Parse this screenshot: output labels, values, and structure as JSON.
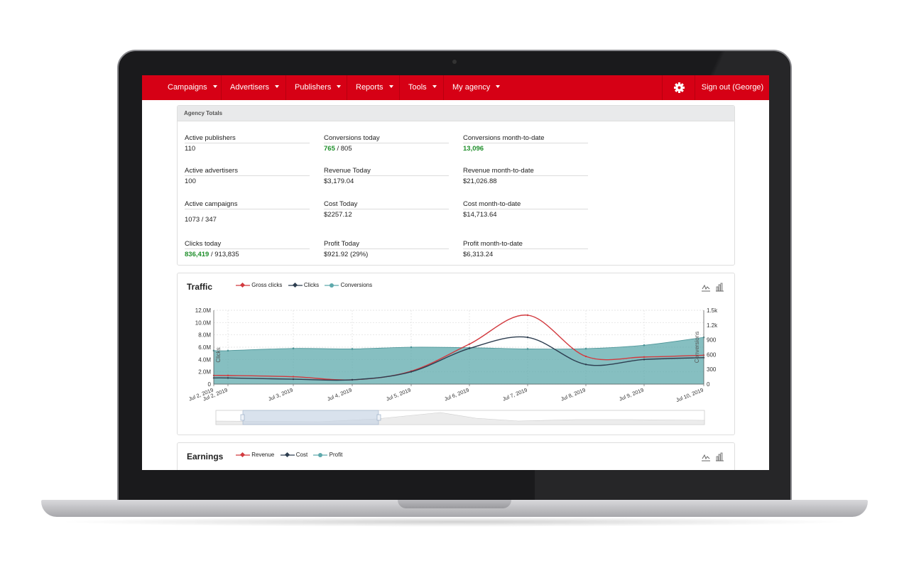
{
  "nav": {
    "items": [
      {
        "label": "Campaigns"
      },
      {
        "label": "Advertisers"
      },
      {
        "label": "Publishers"
      },
      {
        "label": "Reports"
      },
      {
        "label": "Tools"
      },
      {
        "label": "My agency"
      }
    ],
    "settings_icon": "gear-icon",
    "signout_label": "Sign out (George)",
    "accent_color": "#d60015"
  },
  "totals": {
    "title": "Agency Totals",
    "col1": [
      {
        "label": "Active publishers",
        "value": "110"
      },
      {
        "label": "Active advertisers",
        "value": "100"
      },
      {
        "label": "Active campaigns",
        "value": "1073 / 347"
      },
      {
        "label": "Clicks today",
        "value_highlight": "836,419",
        "value_rest": " / 913,835"
      }
    ],
    "col2": [
      {
        "label": "Conversions today",
        "value_highlight": "765",
        "value_rest": " / 805"
      },
      {
        "label": "Revenue Today",
        "value": "$3,179.04"
      },
      {
        "label": "Cost Today",
        "value": "$2257.12"
      },
      {
        "label": "Profit Today",
        "value": "$921.92 (29%)"
      }
    ],
    "col3": [
      {
        "label": "Conversions month-to-date",
        "value_highlight": "13,096"
      },
      {
        "label": "Revenue month-to-date",
        "value": "$21,026.88"
      },
      {
        "label": "Cost month-to-date",
        "value": "$14,713.64"
      },
      {
        "label": "Profit month-to-date",
        "value": "$6,313.24"
      }
    ]
  },
  "traffic": {
    "title": "Traffic",
    "legend": [
      "Gross clicks",
      "Clicks",
      "Conversions"
    ],
    "colors": {
      "gross": "#d23a3f",
      "clicks": "#2d3e50",
      "conversions": "#5ea9ac"
    },
    "left_axis_label": "Clicks",
    "right_axis_label": "Conversions",
    "icons": [
      "line-chart-icon",
      "bar-chart-icon"
    ]
  },
  "earnings": {
    "title": "Earnings",
    "legend": [
      "Revenue",
      "Cost",
      "Profit"
    ],
    "icons": [
      "line-chart-icon",
      "bar-chart-icon"
    ]
  },
  "chart_data": {
    "type": "line",
    "title": "Traffic",
    "xlabel": "",
    "ylabel": "Clicks",
    "y2label": "Conversions",
    "x": [
      "Jul 2, 2019",
      "Jul 2, 2019",
      "Jul 3, 2019",
      "Jul 4, 2019",
      "Jul 5, 2019",
      "Jul 6, 2019",
      "Jul 7, 2019",
      "Jul 8, 2019",
      "Jul 9, 2019",
      "Jul 10, 2019"
    ],
    "x_ticks": [
      "Jul 2, 2019",
      "Jul 2, 2019",
      "Jul 3, 2019",
      "Jul 4, 2019",
      "Jul 5, 2019",
      "Jul 6, 2019",
      "Jul 7, 2019",
      "Jul 8, 2019",
      "Jul 9, 2019",
      "Jul 10, 2019"
    ],
    "y_ticks": [
      "0",
      "2.0M",
      "4.0M",
      "6.0M",
      "8.0M",
      "10.0M",
      "12.0M"
    ],
    "y2_ticks": [
      "0",
      "300",
      "600",
      "900",
      "1.2k",
      "1.5k"
    ],
    "ylim": [
      0,
      12000000
    ],
    "y2lim": [
      0,
      1500
    ],
    "series": [
      {
        "name": "Gross clicks",
        "axis": "left",
        "values": [
          1400000,
          1400000,
          1200000,
          700000,
          2100000,
          6500000,
          11200000,
          4500000,
          4400000,
          4700000
        ]
      },
      {
        "name": "Clicks",
        "axis": "left",
        "values": [
          1000000,
          1000000,
          800000,
          700000,
          2000000,
          5800000,
          7600000,
          3200000,
          4000000,
          4300000
        ]
      },
      {
        "name": "Conversions",
        "axis": "right",
        "values": [
          680,
          680,
          725,
          715,
          750,
          740,
          715,
          720,
          790,
          950
        ]
      }
    ],
    "grid": true,
    "legend_position": "top-left"
  }
}
